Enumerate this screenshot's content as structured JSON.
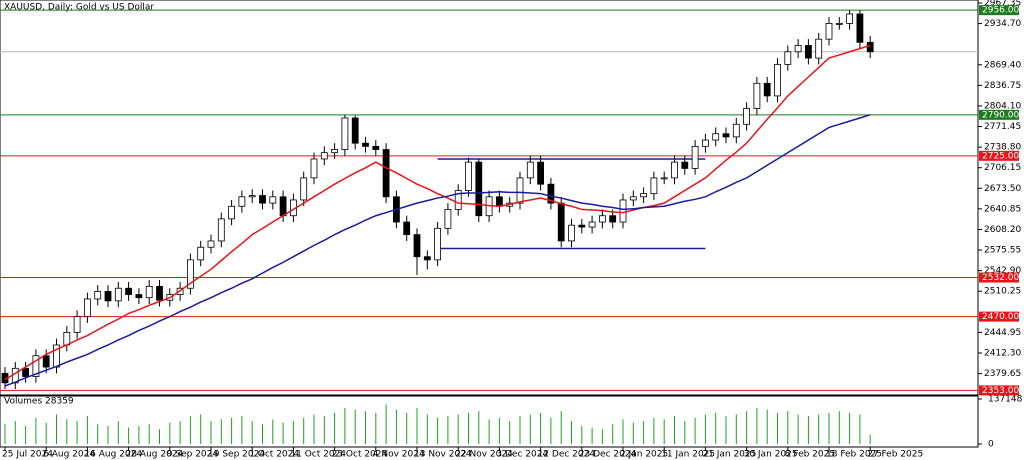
{
  "chart_data": {
    "type": "candlestick",
    "title": "XAUUSD, Daily: Gold vs US Dollar",
    "categories": [
      "25 Jul 2024",
      null,
      null,
      null,
      "6 Aug 2024",
      null,
      null,
      null,
      "16 Aug 2024",
      null,
      null,
      null,
      "28 Aug 2024",
      null,
      null,
      null,
      "9 Sep 2024",
      null,
      null,
      null,
      "19 Sep 2024",
      null,
      null,
      null,
      "1 Oct 2024",
      null,
      null,
      null,
      "11 Oct 2024",
      null,
      null,
      null,
      "23 Oct 2024",
      null,
      null,
      null,
      "4 Nov 2024",
      null,
      null,
      null,
      "13 Nov 2024",
      null,
      null,
      null,
      "22 Nov 2024",
      null,
      null,
      null,
      "3 Dec 2024",
      null,
      null,
      null,
      "12 Dec 2024",
      null,
      null,
      null,
      "23 Dec 2024",
      null,
      null,
      null,
      "2 Jan 2025",
      null,
      null,
      null,
      "11 Jan 2025",
      null,
      null,
      null,
      "21 Jan 2025",
      null,
      null,
      null,
      "30 Jan 2025",
      null,
      null,
      null,
      "8 Feb 2025",
      null,
      null,
      null,
      "18 Feb 2025",
      null,
      null,
      null,
      "27 Feb 2025"
    ],
    "open": [
      2380,
      2365,
      2388,
      2375,
      2408,
      2390,
      2425,
      2445,
      2470,
      2498,
      2510,
      2495,
      2515,
      2505,
      2500,
      2518,
      2496,
      2505,
      2515,
      2560,
      2580,
      2590,
      2625,
      2645,
      2660,
      2662,
      2650,
      2660,
      2630,
      2655,
      2690,
      2720,
      2730,
      2735,
      2785,
      2745,
      2740,
      2735,
      2660,
      2620,
      2600,
      2565,
      2560,
      2610,
      2640,
      2670,
      2715,
      2630,
      2660,
      2645,
      2650,
      2690,
      2715,
      2680,
      2650,
      2590,
      2615,
      2612,
      2620,
      2630,
      2620,
      2655,
      2660,
      2665,
      2690,
      2690,
      2715,
      2705,
      2740,
      2750,
      2760,
      2755,
      2775,
      2800,
      2840,
      2820,
      2870,
      2890,
      2900,
      2880,
      2910,
      2935,
      2935,
      2950,
      2905
    ],
    "high": [
      2390,
      2398,
      2398,
      2418,
      2418,
      2435,
      2455,
      2480,
      2508,
      2520,
      2520,
      2525,
      2525,
      2515,
      2528,
      2528,
      2515,
      2525,
      2570,
      2590,
      2600,
      2635,
      2655,
      2670,
      2672,
      2672,
      2670,
      2670,
      2665,
      2700,
      2730,
      2740,
      2745,
      2790,
      2789,
      2755,
      2750,
      2745,
      2670,
      2630,
      2610,
      2575,
      2620,
      2650,
      2680,
      2722,
      2720,
      2670,
      2670,
      2660,
      2700,
      2725,
      2725,
      2690,
      2660,
      2625,
      2625,
      2630,
      2640,
      2640,
      2665,
      2670,
      2675,
      2700,
      2700,
      2725,
      2725,
      2750,
      2760,
      2770,
      2770,
      2785,
      2810,
      2850,
      2850,
      2880,
      2900,
      2910,
      2910,
      2920,
      2945,
      2945,
      2956,
      2956,
      2915
    ],
    "low": [
      2355,
      2355,
      2365,
      2365,
      2380,
      2380,
      2415,
      2435,
      2460,
      2488,
      2485,
      2485,
      2495,
      2490,
      2490,
      2486,
      2486,
      2495,
      2505,
      2550,
      2570,
      2580,
      2615,
      2635,
      2650,
      2640,
      2640,
      2620,
      2620,
      2645,
      2680,
      2710,
      2720,
      2725,
      2735,
      2730,
      2725,
      2650,
      2610,
      2590,
      2536,
      2545,
      2550,
      2600,
      2630,
      2660,
      2620,
      2620,
      2635,
      2635,
      2640,
      2680,
      2670,
      2640,
      2580,
      2580,
      2602,
      2602,
      2610,
      2610,
      2610,
      2645,
      2650,
      2655,
      2680,
      2680,
      2695,
      2695,
      2730,
      2740,
      2745,
      2745,
      2765,
      2790,
      2810,
      2810,
      2860,
      2880,
      2870,
      2870,
      2900,
      2925,
      2925,
      2895,
      2880
    ],
    "close": [
      2365,
      2388,
      2375,
      2408,
      2390,
      2425,
      2445,
      2470,
      2498,
      2510,
      2495,
      2515,
      2505,
      2500,
      2518,
      2496,
      2505,
      2515,
      2560,
      2580,
      2590,
      2625,
      2645,
      2660,
      2662,
      2650,
      2660,
      2630,
      2655,
      2690,
      2720,
      2730,
      2735,
      2785,
      2745,
      2740,
      2735,
      2660,
      2620,
      2600,
      2565,
      2560,
      2610,
      2640,
      2670,
      2715,
      2630,
      2660,
      2645,
      2650,
      2690,
      2715,
      2680,
      2650,
      2590,
      2615,
      2612,
      2620,
      2630,
      2620,
      2655,
      2660,
      2665,
      2690,
      2690,
      2715,
      2705,
      2740,
      2750,
      2760,
      2755,
      2775,
      2800,
      2840,
      2820,
      2870,
      2890,
      2900,
      2880,
      2910,
      2935,
      2935,
      2950,
      2905,
      2890
    ],
    "series": [
      {
        "color": "#e8141a",
        "values": [
          2370,
          2380,
          2390,
          2400,
          2410,
          2418,
          2425,
          2433,
          2440,
          2449,
          2458,
          2466,
          2475,
          2481,
          2488,
          2494,
          2500,
          2511,
          2523,
          2534,
          2545,
          2559,
          2573,
          2586,
          2600,
          2610,
          2620,
          2630,
          2640,
          2650,
          2660,
          2670,
          2680,
          2689,
          2698,
          2706,
          2715,
          2706,
          2698,
          2689,
          2680,
          2673,
          2665,
          2658,
          2650,
          2649,
          2648,
          2646,
          2645,
          2648,
          2652,
          2655,
          2658,
          2654,
          2649,
          2645,
          2640,
          2639,
          2638,
          2636,
          2635,
          2639,
          2643,
          2646,
          2650,
          2660,
          2670,
          2680,
          2690,
          2704,
          2718,
          2731,
          2745,
          2764,
          2783,
          2801,
          2820,
          2835,
          2850,
          2865,
          2880,
          2885,
          2890,
          2895,
          2900
        ]
      },
      {
        "color": "#1a1aa0",
        "values": [
          2360,
          2366,
          2373,
          2379,
          2385,
          2391,
          2398,
          2404,
          2410,
          2418,
          2425,
          2433,
          2440,
          2448,
          2455,
          2463,
          2470,
          2478,
          2485,
          2493,
          2500,
          2508,
          2515,
          2523,
          2530,
          2539,
          2548,
          2556,
          2565,
          2574,
          2583,
          2591,
          2600,
          2608,
          2615,
          2623,
          2630,
          2635,
          2640,
          2645,
          2650,
          2654,
          2658,
          2661,
          2665,
          2666,
          2666,
          2667,
          2668,
          2667,
          2667,
          2666,
          2665,
          2661,
          2658,
          2654,
          2650,
          2648,
          2645,
          2643,
          2640,
          2641,
          2643,
          2644,
          2645,
          2649,
          2653,
          2656,
          2660,
          2668,
          2675,
          2683,
          2690,
          2700,
          2710,
          2720,
          2730,
          2740,
          2750,
          2760,
          2770,
          2775,
          2780,
          2785,
          2790
        ]
      }
    ],
    "ylim": [
      2345.7,
      2972.1
    ],
    "yticks": [
      {
        "value": 2967.35,
        "label": "2967.35"
      },
      {
        "value": 2934.7,
        "label": "2934.70"
      },
      {
        "value": 2869.4,
        "label": "2869.40"
      },
      {
        "value": 2836.75,
        "label": "2836.75"
      },
      {
        "value": 2804.1,
        "label": "2804.10"
      },
      {
        "value": 2771.45,
        "label": "2771.45"
      },
      {
        "value": 2738.8,
        "label": "2738.80"
      },
      {
        "value": 2706.15,
        "label": "2706.15"
      },
      {
        "value": 2673.5,
        "label": "2673.50"
      },
      {
        "value": 2640.85,
        "label": "2640.85"
      },
      {
        "value": 2608.2,
        "label": "2608.20"
      },
      {
        "value": 2575.55,
        "label": "2575.55"
      },
      {
        "value": 2542.9,
        "label": "2542.90"
      },
      {
        "value": 2510.25,
        "label": "2510.25"
      },
      {
        "value": 2444.95,
        "label": "2444.95"
      },
      {
        "value": 2412.3,
        "label": "2412.30"
      },
      {
        "value": 2379.65,
        "label": "2379.65"
      }
    ],
    "levels": [
      {
        "value": 2956,
        "label": "2956.00",
        "color": "#1e7a1e"
      },
      {
        "value": 2790,
        "label": "2790.00",
        "color": "#1e7a1e"
      },
      {
        "value": 2725,
        "label": "2725.00",
        "color": "#e8141a"
      },
      {
        "value": 2532,
        "label": "2532.00",
        "color": "#e8141a"
      },
      {
        "value": 2470,
        "label": "2470.00",
        "color": "#e8141a"
      },
      {
        "value": 2353,
        "label": "2353.00",
        "color": "#e8141a"
      }
    ],
    "channel": [
      {
        "value": 2720,
        "x": [
          42,
          68
        ]
      },
      {
        "value": 2578,
        "x": [
          42,
          68
        ]
      }
    ],
    "channel_color": "#1a1aa0",
    "volume": {
      "title": "Volumes 28359",
      "color": "#20a020",
      "ylim": [
        0,
        137148
      ],
      "yticks": [
        137148,
        0
      ],
      "values": [
        62000,
        70000,
        55000,
        80000,
        65000,
        90000,
        75000,
        70000,
        85000,
        60000,
        55000,
        70000,
        50000,
        55000,
        60000,
        45000,
        65000,
        70000,
        85000,
        90000,
        70000,
        75000,
        80000,
        85000,
        70000,
        60000,
        75000,
        65000,
        70000,
        80000,
        90000,
        85000,
        95000,
        110000,
        105000,
        100000,
        95000,
        120000,
        105000,
        95000,
        110000,
        90000,
        80000,
        85000,
        90000,
        95000,
        100000,
        75000,
        80000,
        70000,
        85000,
        90000,
        95000,
        80000,
        100000,
        70000,
        55000,
        50000,
        45000,
        60000,
        75000,
        65000,
        70000,
        80000,
        75000,
        85000,
        70000,
        80000,
        90000,
        95000,
        85000,
        90000,
        100000,
        110000,
        105000,
        95000,
        100000,
        90000,
        85000,
        90000,
        95000,
        100000,
        95000,
        90000,
        28359
      ]
    }
  }
}
